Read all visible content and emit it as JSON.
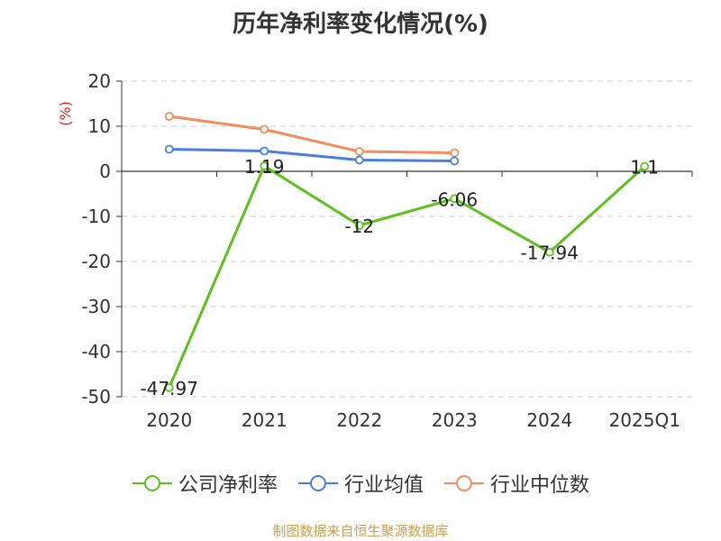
{
  "chart_data": {
    "type": "line",
    "title": "历年净利率变化情况(%)",
    "ylabel": "(%)",
    "categories": [
      "2020",
      "2021",
      "2022",
      "2023",
      "2024",
      "2025Q1"
    ],
    "ylim": [
      -50,
      20
    ],
    "yticks": [
      20,
      10,
      0,
      -10,
      -20,
      -30,
      -40,
      -50
    ],
    "grid": true,
    "legend_position": "bottom",
    "series": [
      {
        "name": "公司净利率",
        "color": "#5ec11e",
        "values": [
          -47.97,
          1.19,
          -12,
          -6.06,
          -17.94,
          1.1
        ],
        "labels": [
          "-47.97",
          "1.19",
          "-12",
          "-6.06",
          "-17.94",
          "1.1"
        ]
      },
      {
        "name": "行业均值",
        "color": "#4a7fe0",
        "values": [
          4.9,
          4.5,
          2.5,
          2.3,
          null,
          null
        ]
      },
      {
        "name": "行业中位数",
        "color": "#f48d5a",
        "values": [
          12.2,
          9.3,
          4.4,
          4.1,
          null,
          null
        ]
      }
    ]
  },
  "source": "制图数据来自恒生聚源数据库",
  "colors": {
    "axis": "#333333",
    "grid": "#cccccc",
    "ylabel": "#e02020",
    "source": "#c9a04f"
  }
}
